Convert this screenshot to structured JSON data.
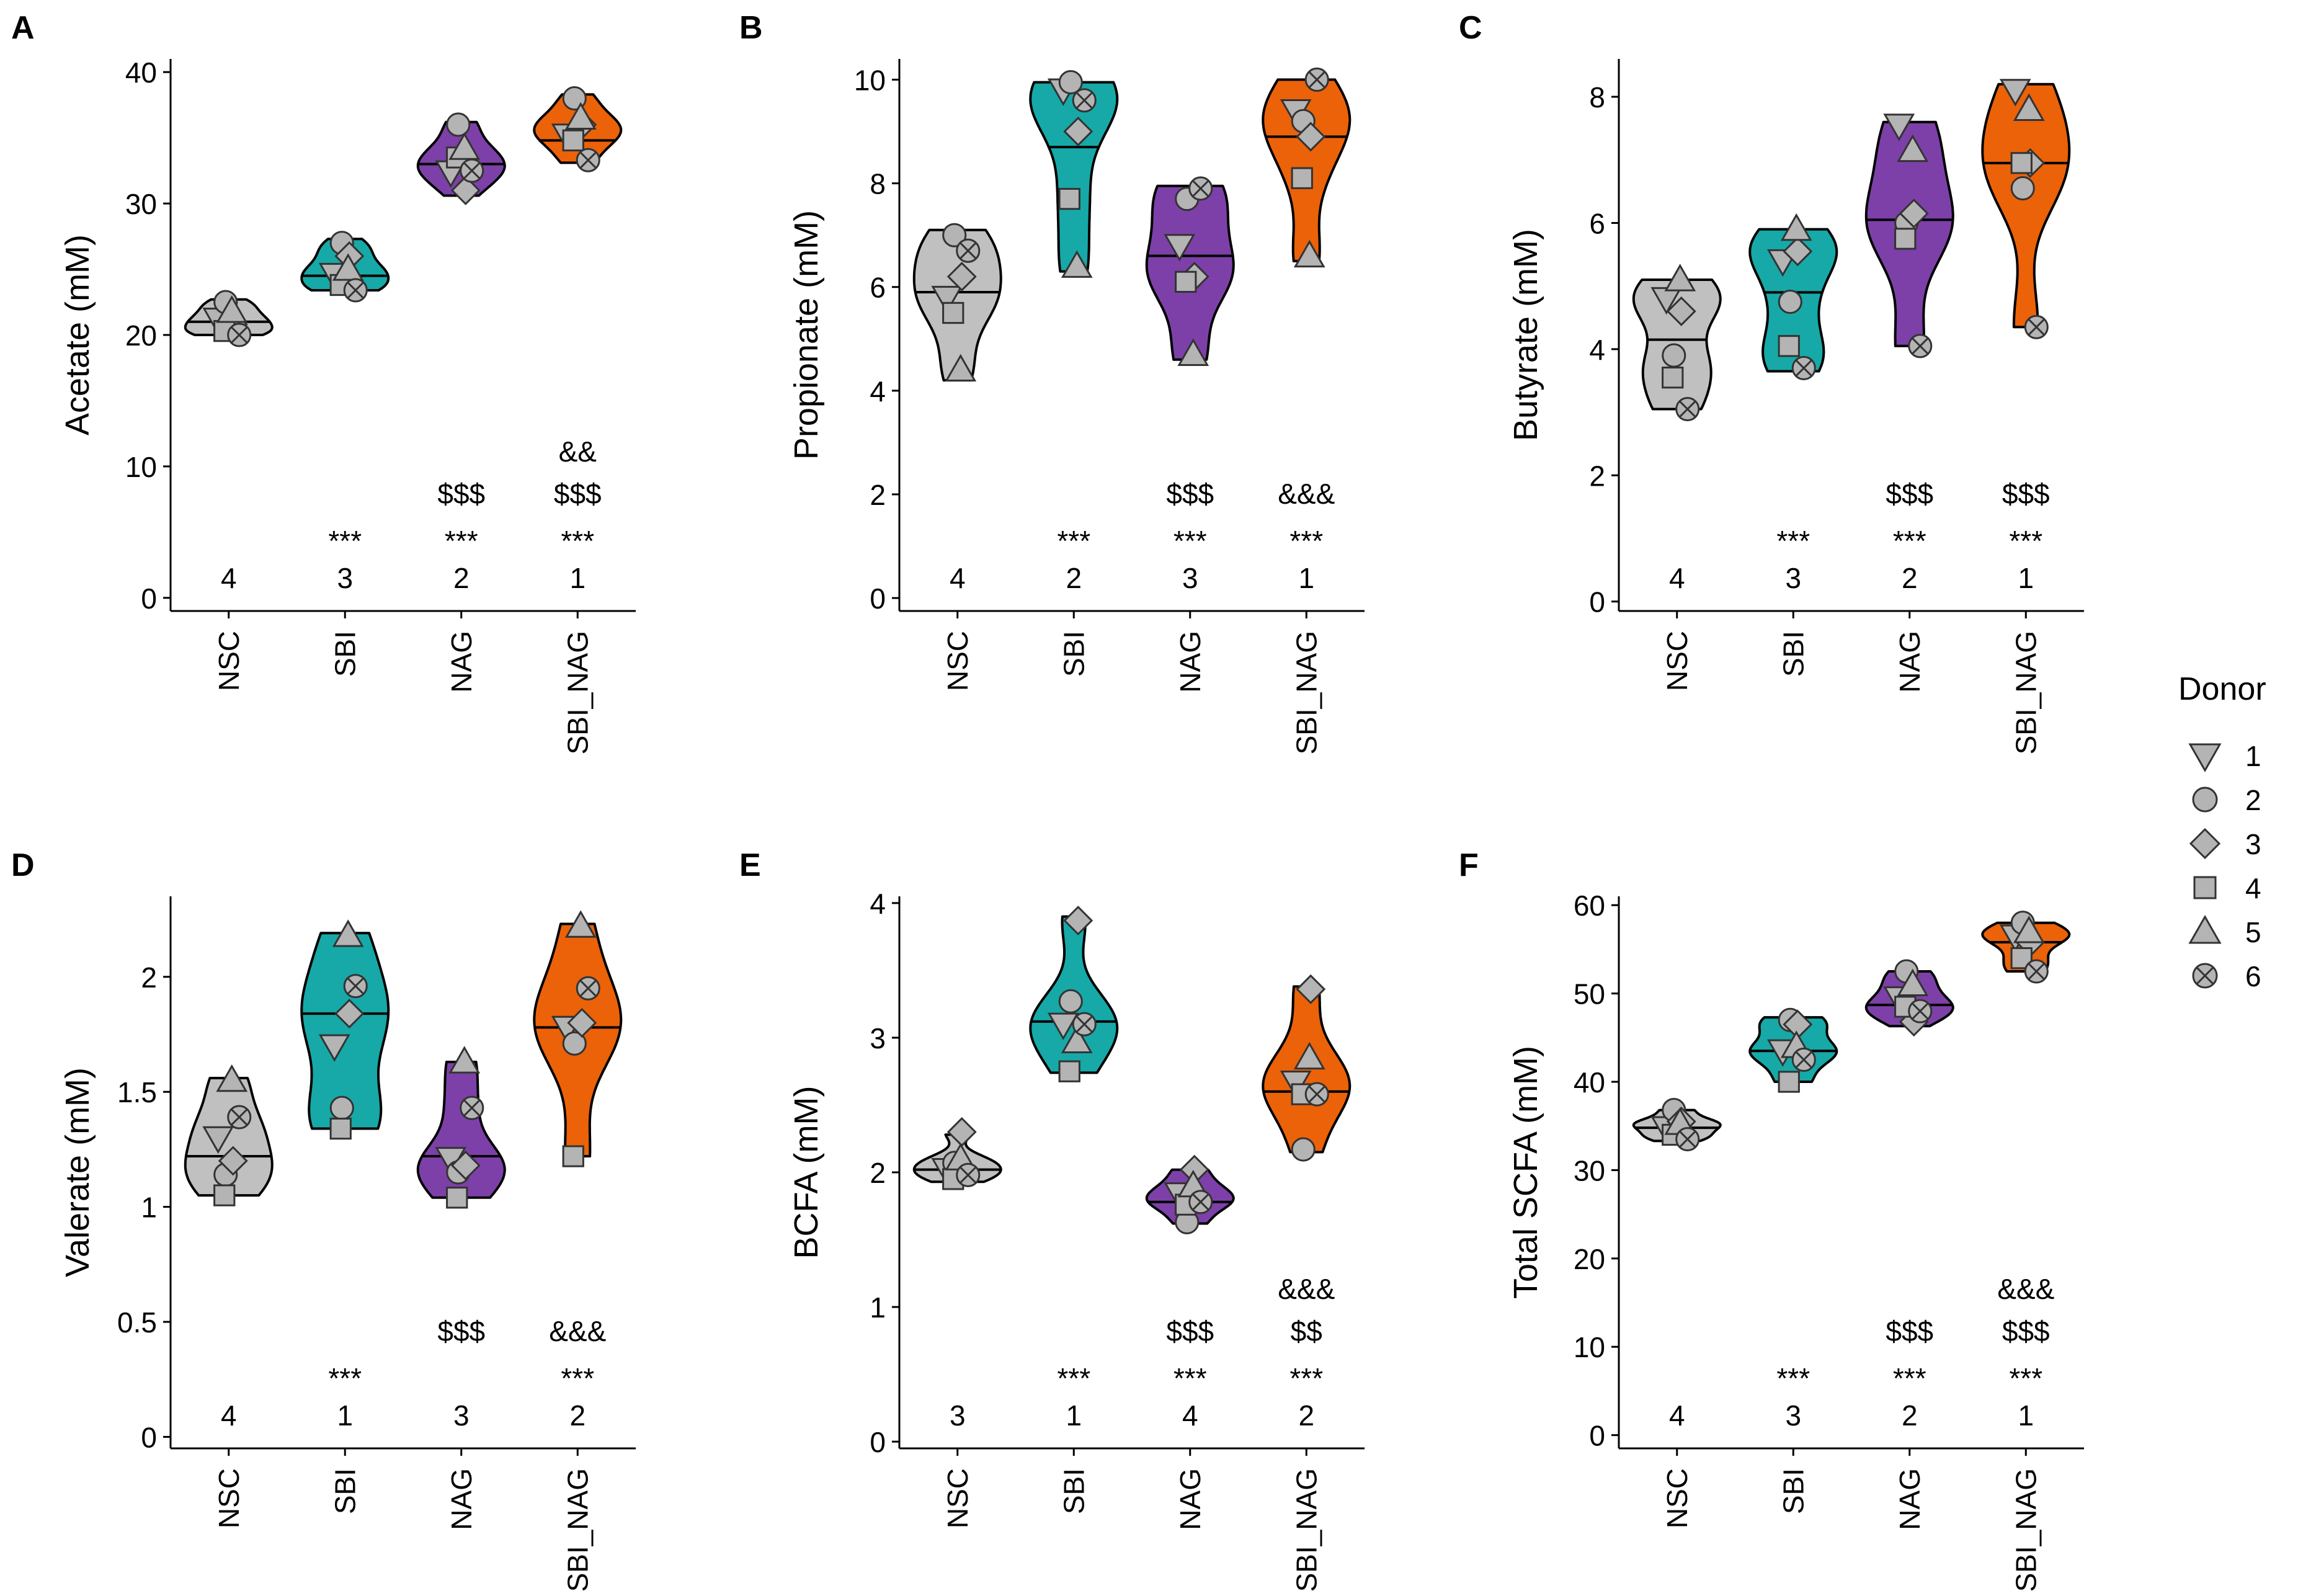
{
  "figure": {
    "legend": {
      "title": "Donor",
      "entries": [
        {
          "label": "1",
          "shape": "triangle-down"
        },
        {
          "label": "2",
          "shape": "circle"
        },
        {
          "label": "3",
          "shape": "diamond"
        },
        {
          "label": "4",
          "shape": "square"
        },
        {
          "label": "5",
          "shape": "triangle-up"
        },
        {
          "label": "6",
          "shape": "circle-x"
        }
      ]
    },
    "group_colors": {
      "NSC": "#c0c0c0",
      "SBI": "#16a9a7",
      "NAG": "#7d40a8",
      "SBI_NAG": "#eb6209"
    },
    "point_color": "#b4b4b4"
  },
  "chart_data": [
    {
      "panel": "A",
      "type": "violin",
      "ylabel": "Acetate (mM)",
      "ylim": [
        -1,
        41
      ],
      "yticks": [
        {
          "v": 0,
          "label": "0"
        },
        {
          "v": 10,
          "label": "10"
        },
        {
          "v": 20,
          "label": "20"
        },
        {
          "v": 30,
          "label": "30"
        },
        {
          "v": 40,
          "label": "40"
        }
      ],
      "categories": [
        "NSC",
        "SBI",
        "NAG",
        "SBI_NAG"
      ],
      "groups": [
        {
          "name": "NSC",
          "median": 21.0,
          "range": [
            20.0,
            22.7
          ],
          "values": [
            21.2,
            22.5,
            20.8,
            20.3,
            21.8,
            20.0
          ],
          "rank": "4",
          "stars": "",
          "dollars": "",
          "amps": ""
        },
        {
          "name": "SBI",
          "median": 24.5,
          "range": [
            23.4,
            27.3
          ],
          "values": [
            24.6,
            27.0,
            26.0,
            23.8,
            25.0,
            23.4
          ],
          "rank": "3",
          "stars": "***",
          "dollars": "",
          "amps": ""
        },
        {
          "name": "NAG",
          "median": 33.0,
          "range": [
            30.6,
            36.2
          ],
          "values": [
            32.4,
            36.0,
            31.0,
            33.5,
            34.2,
            32.5
          ],
          "rank": "2",
          "stars": "***",
          "dollars": "$$$",
          "amps": ""
        },
        {
          "name": "SBI_NAG",
          "median": 34.8,
          "range": [
            33.1,
            38.3
          ],
          "values": [
            35.2,
            38.0,
            36.0,
            34.8,
            36.5,
            33.3
          ],
          "rank": "1",
          "stars": "***",
          "dollars": "$$$",
          "amps": "&&"
        }
      ]
    },
    {
      "panel": "B",
      "type": "violin",
      "ylabel": "Propionate (mM)",
      "ylim": [
        -0.25,
        10.4
      ],
      "yticks": [
        {
          "v": 0,
          "label": "0"
        },
        {
          "v": 2,
          "label": "2"
        },
        {
          "v": 4,
          "label": "4"
        },
        {
          "v": 6,
          "label": "6"
        },
        {
          "v": 8,
          "label": "8"
        },
        {
          "v": 10,
          "label": "10"
        }
      ],
      "categories": [
        "NSC",
        "SBI",
        "NAG",
        "SBI_NAG"
      ],
      "groups": [
        {
          "name": "NSC",
          "median": 5.9,
          "range": [
            4.2,
            7.1
          ],
          "values": [
            5.8,
            7.0,
            6.2,
            5.5,
            4.4,
            6.7
          ],
          "rank": "4",
          "stars": "",
          "dollars": "",
          "amps": ""
        },
        {
          "name": "SBI",
          "median": 8.7,
          "range": [
            6.3,
            9.95
          ],
          "values": [
            9.8,
            9.95,
            9.0,
            7.7,
            6.4,
            9.6
          ],
          "rank": "2",
          "stars": "***",
          "dollars": "",
          "amps": ""
        },
        {
          "name": "NAG",
          "median": 6.6,
          "range": [
            4.6,
            7.95
          ],
          "values": [
            6.8,
            7.7,
            6.2,
            6.1,
            4.7,
            7.9
          ],
          "rank": "3",
          "stars": "***",
          "dollars": "$$$",
          "amps": ""
        },
        {
          "name": "SBI_NAG",
          "median": 8.9,
          "range": [
            6.5,
            10.0
          ],
          "values": [
            9.4,
            9.2,
            8.9,
            8.1,
            6.6,
            10.0
          ],
          "rank": "1",
          "stars": "***",
          "dollars": "",
          "amps": "&&&"
        }
      ]
    },
    {
      "panel": "C",
      "type": "violin",
      "ylabel": "Butyrate (mM)",
      "ylim": [
        -0.15,
        8.6
      ],
      "yticks": [
        {
          "v": 0,
          "label": "0"
        },
        {
          "v": 2,
          "label": "2"
        },
        {
          "v": 4,
          "label": "4"
        },
        {
          "v": 6,
          "label": "6"
        },
        {
          "v": 8,
          "label": "8"
        }
      ],
      "categories": [
        "NSC",
        "SBI",
        "NAG",
        "SBI_NAG"
      ],
      "groups": [
        {
          "name": "NSC",
          "median": 4.15,
          "range": [
            3.05,
            5.1
          ],
          "values": [
            4.8,
            3.9,
            4.6,
            3.55,
            5.1,
            3.05
          ],
          "rank": "4",
          "stars": "",
          "dollars": "",
          "amps": ""
        },
        {
          "name": "SBI",
          "median": 4.9,
          "range": [
            3.65,
            5.9
          ],
          "values": [
            5.4,
            4.75,
            5.55,
            4.05,
            5.9,
            3.7
          ],
          "rank": "3",
          "stars": "***",
          "dollars": "",
          "amps": ""
        },
        {
          "name": "NAG",
          "median": 6.05,
          "range": [
            4.05,
            7.6
          ],
          "values": [
            7.55,
            6.0,
            6.15,
            5.75,
            7.15,
            4.05
          ],
          "rank": "2",
          "stars": "***",
          "dollars": "$$$",
          "amps": ""
        },
        {
          "name": "SBI_NAG",
          "median": 6.95,
          "range": [
            4.35,
            8.2
          ],
          "values": [
            8.1,
            6.55,
            6.95,
            6.95,
            7.8,
            4.35
          ],
          "rank": "1",
          "stars": "***",
          "dollars": "$$$",
          "amps": ""
        }
      ]
    },
    {
      "panel": "D",
      "type": "violin",
      "ylabel": "Valerate (mM)",
      "ylim": [
        -0.05,
        2.35
      ],
      "yticks": [
        {
          "v": 0,
          "label": "0"
        },
        {
          "v": 0.5,
          "label": "0.5"
        },
        {
          "v": 1,
          "label": "1"
        },
        {
          "v": 1.5,
          "label": "1.5"
        },
        {
          "v": 2,
          "label": "2"
        }
      ],
      "categories": [
        "NSC",
        "SBI",
        "NAG",
        "SBI_NAG"
      ],
      "groups": [
        {
          "name": "NSC",
          "median": 1.22,
          "range": [
            1.05,
            1.56
          ],
          "values": [
            1.3,
            1.14,
            1.2,
            1.05,
            1.55,
            1.39
          ],
          "rank": "4",
          "stars": "",
          "dollars": "",
          "amps": ""
        },
        {
          "name": "SBI",
          "median": 1.84,
          "range": [
            1.34,
            2.19
          ],
          "values": [
            1.7,
            1.43,
            1.84,
            1.34,
            2.18,
            1.96
          ],
          "rank": "1",
          "stars": "***",
          "dollars": "",
          "amps": ""
        },
        {
          "name": "NAG",
          "median": 1.22,
          "range": [
            1.04,
            1.63
          ],
          "values": [
            1.21,
            1.15,
            1.18,
            1.04,
            1.63,
            1.43
          ],
          "rank": "3",
          "stars": "",
          "dollars": "$$$",
          "amps": ""
        },
        {
          "name": "SBI_NAG",
          "median": 1.78,
          "range": [
            1.22,
            2.23
          ],
          "values": [
            1.78,
            1.71,
            1.8,
            1.22,
            2.22,
            1.95
          ],
          "rank": "2",
          "stars": "***",
          "dollars": "",
          "amps": "&&&"
        }
      ]
    },
    {
      "panel": "E",
      "type": "violin",
      "ylabel": "BCFA (mM)",
      "ylim": [
        -0.05,
        4.05
      ],
      "yticks": [
        {
          "v": 0,
          "label": "0"
        },
        {
          "v": 1,
          "label": "1"
        },
        {
          "v": 2,
          "label": "2"
        },
        {
          "v": 3,
          "label": "3"
        },
        {
          "v": 4,
          "label": "4"
        }
      ],
      "categories": [
        "NSC",
        "SBI",
        "NAG",
        "SBI_NAG"
      ],
      "groups": [
        {
          "name": "NSC",
          "median": 2.02,
          "range": [
            1.93,
            2.28
          ],
          "values": [
            2.02,
            2.07,
            2.3,
            1.95,
            2.1,
            1.98
          ],
          "rank": "3",
          "stars": "",
          "dollars": "",
          "amps": ""
        },
        {
          "name": "SBI",
          "median": 3.12,
          "range": [
            2.74,
            3.9
          ],
          "values": [
            3.1,
            3.27,
            3.87,
            2.75,
            2.97,
            3.1
          ],
          "rank": "1",
          "stars": "***",
          "dollars": "",
          "amps": ""
        },
        {
          "name": "NAG",
          "median": 1.78,
          "range": [
            1.62,
            2.02
          ],
          "values": [
            1.84,
            1.63,
            2.02,
            1.76,
            1.9,
            1.78
          ],
          "rank": "4",
          "stars": "***",
          "dollars": "$$$",
          "amps": ""
        },
        {
          "name": "SBI_NAG",
          "median": 2.6,
          "range": [
            2.15,
            3.38
          ],
          "values": [
            2.67,
            2.17,
            3.36,
            2.58,
            2.85,
            2.58
          ],
          "rank": "2",
          "stars": "***",
          "dollars": "$$",
          "amps": "&&&"
        }
      ]
    },
    {
      "panel": "F",
      "type": "violin",
      "ylabel": "Total SCFA (mM)",
      "ylim": [
        -1.5,
        61
      ],
      "yticks": [
        {
          "v": 0,
          "label": "0"
        },
        {
          "v": 10,
          "label": "10"
        },
        {
          "v": 20,
          "label": "20"
        },
        {
          "v": 30,
          "label": "30"
        },
        {
          "v": 40,
          "label": "40"
        },
        {
          "v": 50,
          "label": "50"
        },
        {
          "v": 60,
          "label": "60"
        }
      ],
      "categories": [
        "NSC",
        "SBI",
        "NAG",
        "SBI_NAG"
      ],
      "groups": [
        {
          "name": "NSC",
          "median": 34.8,
          "range": [
            33.3,
            36.8
          ],
          "values": [
            34.8,
            36.8,
            35.5,
            34.0,
            35.3,
            33.5
          ],
          "rank": "4",
          "stars": "",
          "dollars": "",
          "amps": ""
        },
        {
          "name": "SBI",
          "median": 43.5,
          "range": [
            40.0,
            47.3
          ],
          "values": [
            43.5,
            47.0,
            46.5,
            40.0,
            44.0,
            42.5
          ],
          "rank": "3",
          "stars": "***",
          "dollars": "",
          "amps": ""
        },
        {
          "name": "NAG",
          "median": 48.7,
          "range": [
            46.3,
            52.5
          ],
          "values": [
            49.5,
            52.5,
            46.8,
            48.5,
            51.0,
            48.0
          ],
          "rank": "2",
          "stars": "***",
          "dollars": "$$$",
          "amps": ""
        },
        {
          "name": "SBI_NAG",
          "median": 55.8,
          "range": [
            52.5,
            58.0
          ],
          "values": [
            56.5,
            58.0,
            55.8,
            54.0,
            57.0,
            52.5
          ],
          "rank": "1",
          "stars": "***",
          "dollars": "$$$",
          "amps": "&&&"
        }
      ]
    }
  ]
}
